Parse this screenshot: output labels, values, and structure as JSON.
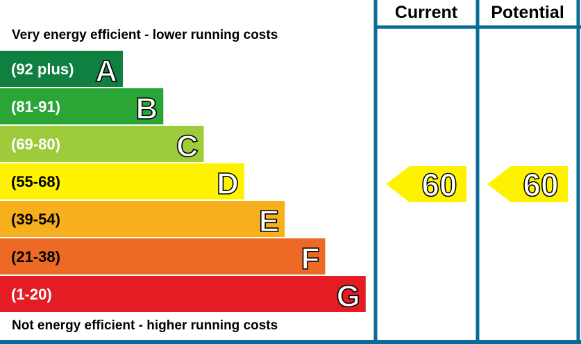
{
  "header": {
    "current_label": "Current",
    "potential_label": "Potential"
  },
  "captions": {
    "top": "Very energy efficient - lower running costs",
    "bottom": "Not energy efficient - higher running costs"
  },
  "colors": {
    "frame": "#0a6b96",
    "arrow": "#fff200"
  },
  "chart_data": {
    "type": "bar",
    "bands": [
      {
        "range": "(92 plus)",
        "letter": "A",
        "color": "#0f8040",
        "text_color": "#ffffff"
      },
      {
        "range": "(81-91)",
        "letter": "B",
        "color": "#2aa636",
        "text_color": "#ffffff"
      },
      {
        "range": "(69-80)",
        "letter": "C",
        "color": "#9dcb3c",
        "text_color": "#ffffff"
      },
      {
        "range": "(55-68)",
        "letter": "D",
        "color": "#fff200",
        "text_color": "#000000"
      },
      {
        "range": "(39-54)",
        "letter": "E",
        "color": "#f7af1e",
        "text_color": "#000000"
      },
      {
        "range": "(21-38)",
        "letter": "F",
        "color": "#ec6a25",
        "text_color": "#000000"
      },
      {
        "range": "(1-20)",
        "letter": "G",
        "color": "#e31d23",
        "text_color": "#ffffff"
      }
    ],
    "current": {
      "value": 60,
      "label": "60",
      "band": "D"
    },
    "potential": {
      "value": 60,
      "label": "60",
      "band": "D"
    }
  }
}
